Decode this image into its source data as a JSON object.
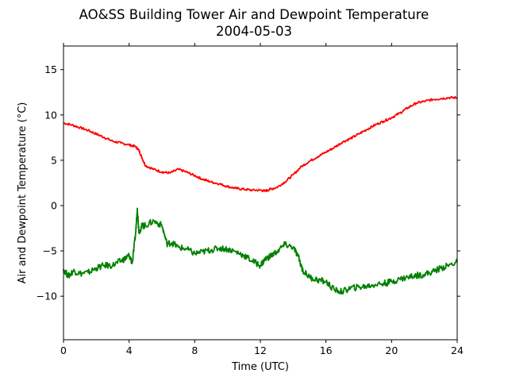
{
  "chart_data": {
    "type": "line",
    "title": "AO&SS Building Tower Air and Dewpoint Temperature",
    "subtitle": "2004-05-03",
    "xlabel": "Time (UTC)",
    "ylabel": "Air and Dewpoint Temperature (°C)",
    "xlim": [
      0,
      24
    ],
    "ylim": [
      -14.8,
      17.6
    ],
    "xticks": [
      0,
      4,
      8,
      12,
      16,
      20,
      24
    ],
    "xtick_labels": [
      "0",
      "4",
      "8",
      "12",
      "16",
      "20",
      "24"
    ],
    "yticks": [
      -10,
      -5,
      0,
      5,
      10,
      15
    ],
    "ytick_labels": [
      "−10",
      "−5",
      "0",
      "5",
      "10",
      "15"
    ],
    "grid": false,
    "series": [
      {
        "color": "#ff0000",
        "x": [
          0,
          0.5,
          1,
          1.5,
          2,
          2.5,
          3,
          3.5,
          4,
          4.4,
          4.6,
          4.8,
          5,
          5.5,
          6,
          6.5,
          7,
          7.5,
          8,
          8.5,
          9,
          9.5,
          10,
          10.5,
          11,
          11.5,
          12,
          12.3,
          12.6,
          13,
          13.5,
          14,
          14.5,
          15,
          15.5,
          16,
          16.5,
          17,
          17.5,
          18,
          18.5,
          19,
          19.5,
          20,
          20.5,
          21,
          21.5,
          22,
          22.5,
          23,
          23.5,
          24
        ],
        "y": [
          9.1,
          8.9,
          8.6,
          8.3,
          7.9,
          7.5,
          7.1,
          6.9,
          6.7,
          6.5,
          6.1,
          5.2,
          4.4,
          4.0,
          3.7,
          3.6,
          4.0,
          3.7,
          3.3,
          2.9,
          2.6,
          2.4,
          2.1,
          1.9,
          1.8,
          1.7,
          1.7,
          1.6,
          1.8,
          2.0,
          2.6,
          3.4,
          4.3,
          4.9,
          5.4,
          5.9,
          6.4,
          7.0,
          7.4,
          7.9,
          8.4,
          8.9,
          9.3,
          9.7,
          10.2,
          10.8,
          11.3,
          11.5,
          11.7,
          11.8,
          11.9,
          11.9
        ]
      },
      {
        "color": "#008000",
        "x": [
          0,
          0.3,
          0.6,
          1,
          1.5,
          2,
          2.5,
          3,
          3.5,
          3.8,
          4,
          4.2,
          4.4,
          4.5,
          4.6,
          4.8,
          5,
          5.5,
          6,
          6.3,
          6.6,
          7,
          7.5,
          8,
          8.5,
          9,
          9.5,
          10,
          10.5,
          11,
          11.5,
          12,
          12.3,
          12.6,
          13,
          13.5,
          14,
          14.3,
          14.6,
          15,
          15.5,
          16,
          16.5,
          17,
          17.5,
          18,
          18.5,
          19,
          19.5,
          20,
          20.5,
          21,
          21.5,
          22,
          22.5,
          23,
          23.5,
          24
        ],
        "y": [
          -7.0,
          -7.8,
          -7.2,
          -7.5,
          -7.4,
          -6.9,
          -6.6,
          -6.6,
          -6.1,
          -5.8,
          -5.5,
          -6.3,
          -3.0,
          -0.3,
          -2.9,
          -2.2,
          -2.2,
          -1.7,
          -2.2,
          -4.2,
          -4.1,
          -4.6,
          -4.8,
          -5.3,
          -5.1,
          -4.9,
          -4.7,
          -4.8,
          -5.1,
          -5.5,
          -6.1,
          -6.6,
          -5.9,
          -5.6,
          -5.1,
          -4.3,
          -4.6,
          -5.6,
          -7.2,
          -7.9,
          -8.2,
          -8.4,
          -9.3,
          -9.5,
          -9.1,
          -9.0,
          -8.9,
          -8.7,
          -8.6,
          -8.4,
          -8.1,
          -7.9,
          -7.7,
          -7.6,
          -7.3,
          -6.9,
          -6.6,
          -6.2
        ]
      }
    ]
  }
}
